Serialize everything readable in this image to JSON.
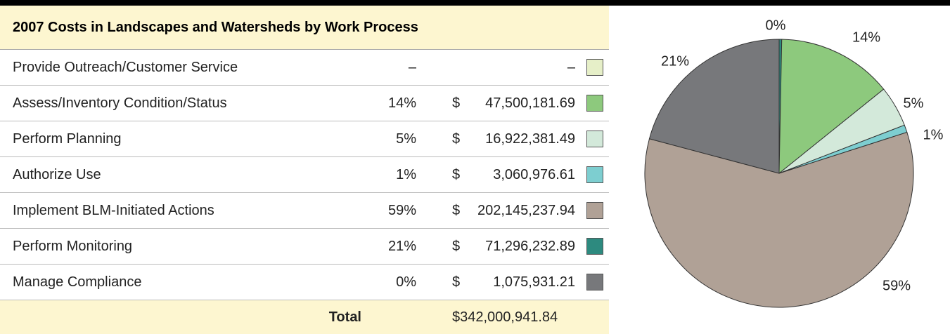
{
  "table": {
    "title": "2007 Costs in Landscapes and Watersheds by Work Process",
    "rows": [
      {
        "name": "Provide Outreach/Customer Service",
        "percent": "–",
        "amount": "–",
        "color": "#e6efc8"
      },
      {
        "name": "Assess/Inventory Condition/Status",
        "percent": "14%",
        "currency": "$",
        "amount": "47,500,181.69",
        "color": "#8dc97d"
      },
      {
        "name": "Perform Planning",
        "percent": "5%",
        "currency": "$",
        "amount": "16,922,381.49",
        "color": "#d3e9da"
      },
      {
        "name": "Authorize Use",
        "percent": "1%",
        "currency": "$",
        "amount": "3,060,976.61",
        "color": "#7dced0"
      },
      {
        "name": "Implement BLM-Initiated Actions",
        "percent": "59%",
        "currency": "$",
        "amount": "202,145,237.94",
        "color": "#b0a196"
      },
      {
        "name": "Perform Monitoring",
        "percent": "21%",
        "currency": "$",
        "amount": "71,296,232.89",
        "color": "#2d8a7f"
      },
      {
        "name": "Manage Compliance",
        "percent": "0%",
        "currency": "$",
        "amount": "1,075,931.21",
        "color": "#77787b"
      }
    ],
    "total": {
      "label": "Total",
      "amount": "$342,000,941.84"
    }
  },
  "chart_data": {
    "type": "pie",
    "values": [
      0.31,
      13.89,
      4.95,
      0.9,
      59.11,
      20.85
    ],
    "value_labels": [
      "0%",
      "14%",
      "5%",
      "1%",
      "59%",
      "21%"
    ],
    "colors": [
      "#2d8a7f",
      "#8dc97d",
      "#d3e9da",
      "#7dced0",
      "#b0a196",
      "#77787b"
    ]
  }
}
